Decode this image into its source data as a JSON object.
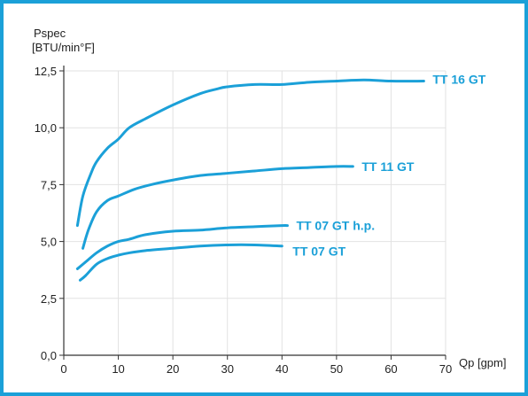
{
  "chart_data": {
    "type": "line",
    "title": "",
    "ylabel": "Pspec",
    "yunit": "[BTU/min°F]",
    "xlabel": "Qp [gpm]",
    "xlim": [
      0,
      70
    ],
    "ylim": [
      0,
      12.5
    ],
    "xticks": [
      "0",
      "10",
      "20",
      "30",
      "40",
      "50",
      "60",
      "70"
    ],
    "yticks": [
      "0,0",
      "2,5",
      "5,0",
      "7,5",
      "10,0",
      "12,5"
    ],
    "grid": true,
    "line_color": "#1ba0d8",
    "frame_color": "#1ba0d8",
    "series": [
      {
        "name": "TT 16 GT",
        "x": [
          2.5,
          3.5,
          5,
          6,
          8,
          10,
          12,
          15,
          20,
          25,
          28,
          30,
          35,
          40,
          45,
          50,
          55,
          60,
          66
        ],
        "y": [
          5.7,
          7.0,
          8.0,
          8.5,
          9.1,
          9.5,
          10.0,
          10.4,
          11.0,
          11.5,
          11.7,
          11.8,
          11.9,
          11.9,
          12.0,
          12.05,
          12.1,
          12.05,
          12.05
        ]
      },
      {
        "name": "TT 11 GT",
        "x": [
          3.5,
          4.5,
          6,
          8,
          10,
          13,
          16,
          20,
          25,
          30,
          35,
          40,
          45,
          50,
          53
        ],
        "y": [
          4.7,
          5.5,
          6.3,
          6.8,
          7.0,
          7.3,
          7.5,
          7.7,
          7.9,
          8.0,
          8.1,
          8.2,
          8.25,
          8.3,
          8.3
        ]
      },
      {
        "name": "TT 07 GT h.p.",
        "x": [
          2.5,
          4,
          6,
          8,
          10,
          12,
          15,
          20,
          25,
          30,
          35,
          40,
          41
        ],
        "y": [
          3.8,
          4.1,
          4.5,
          4.8,
          5.0,
          5.1,
          5.3,
          5.45,
          5.5,
          5.6,
          5.65,
          5.7,
          5.7
        ]
      },
      {
        "name": "TT 07 GT",
        "x": [
          3,
          4,
          6,
          8,
          10,
          12,
          15,
          20,
          25,
          30,
          35,
          40
        ],
        "y": [
          3.3,
          3.5,
          4.0,
          4.25,
          4.4,
          4.5,
          4.6,
          4.7,
          4.8,
          4.85,
          4.85,
          4.8
        ]
      }
    ]
  }
}
